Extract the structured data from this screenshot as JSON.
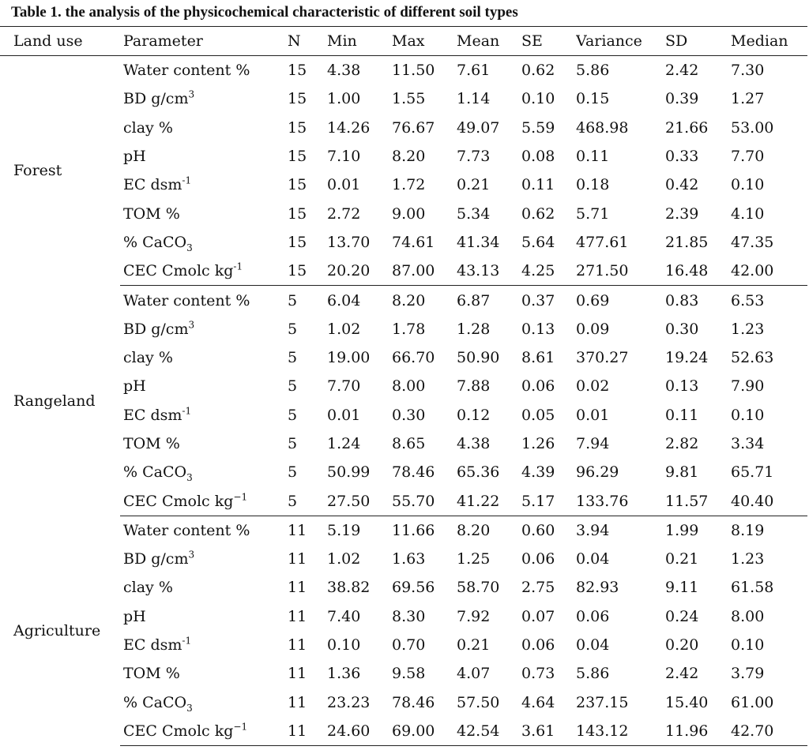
{
  "caption": "Table 1. the analysis of the physicochemical characteristic of different soil types",
  "headers": [
    "Land use",
    "Parameter",
    "N",
    "Min",
    "Max",
    "Mean",
    "SE",
    "Variance",
    "SD",
    "Median"
  ],
  "groups": [
    {
      "land_use": "Forest",
      "rows": [
        {
          "param": [
            "Water content %",
            "",
            ""
          ],
          "n": "15",
          "min": "4.38",
          "max": "11.50",
          "mean": "7.61",
          "se": "0.62",
          "variance": "5.86",
          "sd": "2.42",
          "median": "7.30"
        },
        {
          "param": [
            "BD g/cm",
            "3",
            ""
          ],
          "n": "15",
          "min": "1.00",
          "max": "1.55",
          "mean": "1.14",
          "se": "0.10",
          "variance": "0.15",
          "sd": "0.39",
          "median": "1.27"
        },
        {
          "param": [
            "clay %",
            "",
            ""
          ],
          "n": "15",
          "min": "14.26",
          "max": "76.67",
          "mean": "49.07",
          "se": "5.59",
          "variance": "468.98",
          "sd": "21.66",
          "median": "53.00"
        },
        {
          "param": [
            "pH",
            "",
            ""
          ],
          "n": "15",
          "min": "7.10",
          "max": "8.20",
          "mean": "7.73",
          "se": "0.08",
          "variance": "0.11",
          "sd": "0.33",
          "median": "7.70"
        },
        {
          "param": [
            "EC dsm",
            "-1",
            ""
          ],
          "n": "15",
          "min": "0.01",
          "max": "1.72",
          "mean": "0.21",
          "se": "0.11",
          "variance": "0.18",
          "sd": "0.42",
          "median": "0.10"
        },
        {
          "param": [
            "TOM %",
            "",
            ""
          ],
          "n": "15",
          "min": "2.72",
          "max": "9.00",
          "mean": "5.34",
          "se": "0.62",
          "variance": "5.71",
          "sd": "2.39",
          "median": "4.10"
        },
        {
          "param": [
            "% CaCO",
            "",
            "3"
          ],
          "n": "15",
          "min": "13.70",
          "max": "74.61",
          "mean": "41.34",
          "se": "5.64",
          "variance": "477.61",
          "sd": "21.85",
          "median": "47.35"
        },
        {
          "param": [
            "CEC Cmolc kg",
            "-1",
            ""
          ],
          "n": "15",
          "min": "20.20",
          "max": "87.00",
          "mean": "43.13",
          "se": "4.25",
          "variance": "271.50",
          "sd": "16.48",
          "median": "42.00"
        }
      ]
    },
    {
      "land_use": "Rangeland",
      "rows": [
        {
          "param": [
            "Water content %",
            "",
            ""
          ],
          "n": "5",
          "min": "6.04",
          "max": "8.20",
          "mean": "6.87",
          "se": "0.37",
          "variance": "0.69",
          "sd": "0.83",
          "median": "6.53"
        },
        {
          "param": [
            "BD g/cm",
            "3",
            ""
          ],
          "n": "5",
          "min": "1.02",
          "max": "1.78",
          "mean": "1.28",
          "se": "0.13",
          "variance": "0.09",
          "sd": "0.30",
          "median": "1.23"
        },
        {
          "param": [
            "clay %",
            "",
            ""
          ],
          "n": "5",
          "min": "19.00",
          "max": "66.70",
          "mean": "50.90",
          "se": "8.61",
          "variance": "370.27",
          "sd": "19.24",
          "median": "52.63"
        },
        {
          "param": [
            "pH",
            "",
            ""
          ],
          "n": "5",
          "min": "7.70",
          "max": "8.00",
          "mean": "7.88",
          "se": "0.06",
          "variance": "0.02",
          "sd": "0.13",
          "median": "7.90"
        },
        {
          "param": [
            "EC dsm",
            "-1",
            ""
          ],
          "n": "5",
          "min": "0.01",
          "max": "0.30",
          "mean": "0.12",
          "se": "0.05",
          "variance": "0.01",
          "sd": "0.11",
          "median": "0.10"
        },
        {
          "param": [
            "TOM %",
            "",
            ""
          ],
          "n": "5",
          "min": "1.24",
          "max": "8.65",
          "mean": "4.38",
          "se": "1.26",
          "variance": "7.94",
          "sd": "2.82",
          "median": "3.34"
        },
        {
          "param": [
            "% CaCO",
            "",
            "3"
          ],
          "n": "5",
          "min": "50.99",
          "max": "78.46",
          "mean": "65.36",
          "se": "4.39",
          "variance": "96.29",
          "sd": "9.81",
          "median": "65.71"
        },
        {
          "param": [
            "CEC Cmolc kg",
            "−1",
            ""
          ],
          "n": "5",
          "min": "27.50",
          "max": "55.70",
          "mean": "41.22",
          "se": "5.17",
          "variance": "133.76",
          "sd": "11.57",
          "median": "40.40"
        }
      ]
    },
    {
      "land_use": "Agriculture",
      "rows": [
        {
          "param": [
            "Water content %",
            "",
            ""
          ],
          "n": "11",
          "min": "5.19",
          "max": "11.66",
          "mean": "8.20",
          "se": "0.60",
          "variance": "3.94",
          "sd": "1.99",
          "median": "8.19"
        },
        {
          "param": [
            "BD g/cm",
            "3",
            ""
          ],
          "n": "11",
          "min": "1.02",
          "max": "1.63",
          "mean": "1.25",
          "se": "0.06",
          "variance": "0.04",
          "sd": "0.21",
          "median": "1.23"
        },
        {
          "param": [
            "clay %",
            "",
            ""
          ],
          "n": "11",
          "min": "38.82",
          "max": "69.56",
          "mean": "58.70",
          "se": "2.75",
          "variance": "82.93",
          "sd": "9.11",
          "median": "61.58"
        },
        {
          "param": [
            "pH",
            "",
            ""
          ],
          "n": "11",
          "min": "7.40",
          "max": "8.30",
          "mean": "7.92",
          "se": "0.07",
          "variance": "0.06",
          "sd": "0.24",
          "median": "8.00"
        },
        {
          "param": [
            "EC dsm",
            "-1",
            ""
          ],
          "n": "11",
          "min": "0.10",
          "max": "0.70",
          "mean": "0.21",
          "se": "0.06",
          "variance": "0.04",
          "sd": "0.20",
          "median": "0.10"
        },
        {
          "param": [
            "TOM %",
            "",
            ""
          ],
          "n": "11",
          "min": "1.36",
          "max": "9.58",
          "mean": "4.07",
          "se": "0.73",
          "variance": "5.86",
          "sd": "2.42",
          "median": "3.79"
        },
        {
          "param": [
            "% CaCO",
            "",
            "3"
          ],
          "n": "11",
          "min": "23.23",
          "max": "78.46",
          "mean": "57.50",
          "se": "4.64",
          "variance": "237.15",
          "sd": "15.40",
          "median": "61.00"
        },
        {
          "param": [
            "CEC Cmolc kg",
            "−1",
            ""
          ],
          "n": "11",
          "min": "24.60",
          "max": "69.00",
          "mean": "42.54",
          "se": "3.61",
          "variance": "143.12",
          "sd": "11.96",
          "median": "42.70"
        }
      ]
    }
  ]
}
